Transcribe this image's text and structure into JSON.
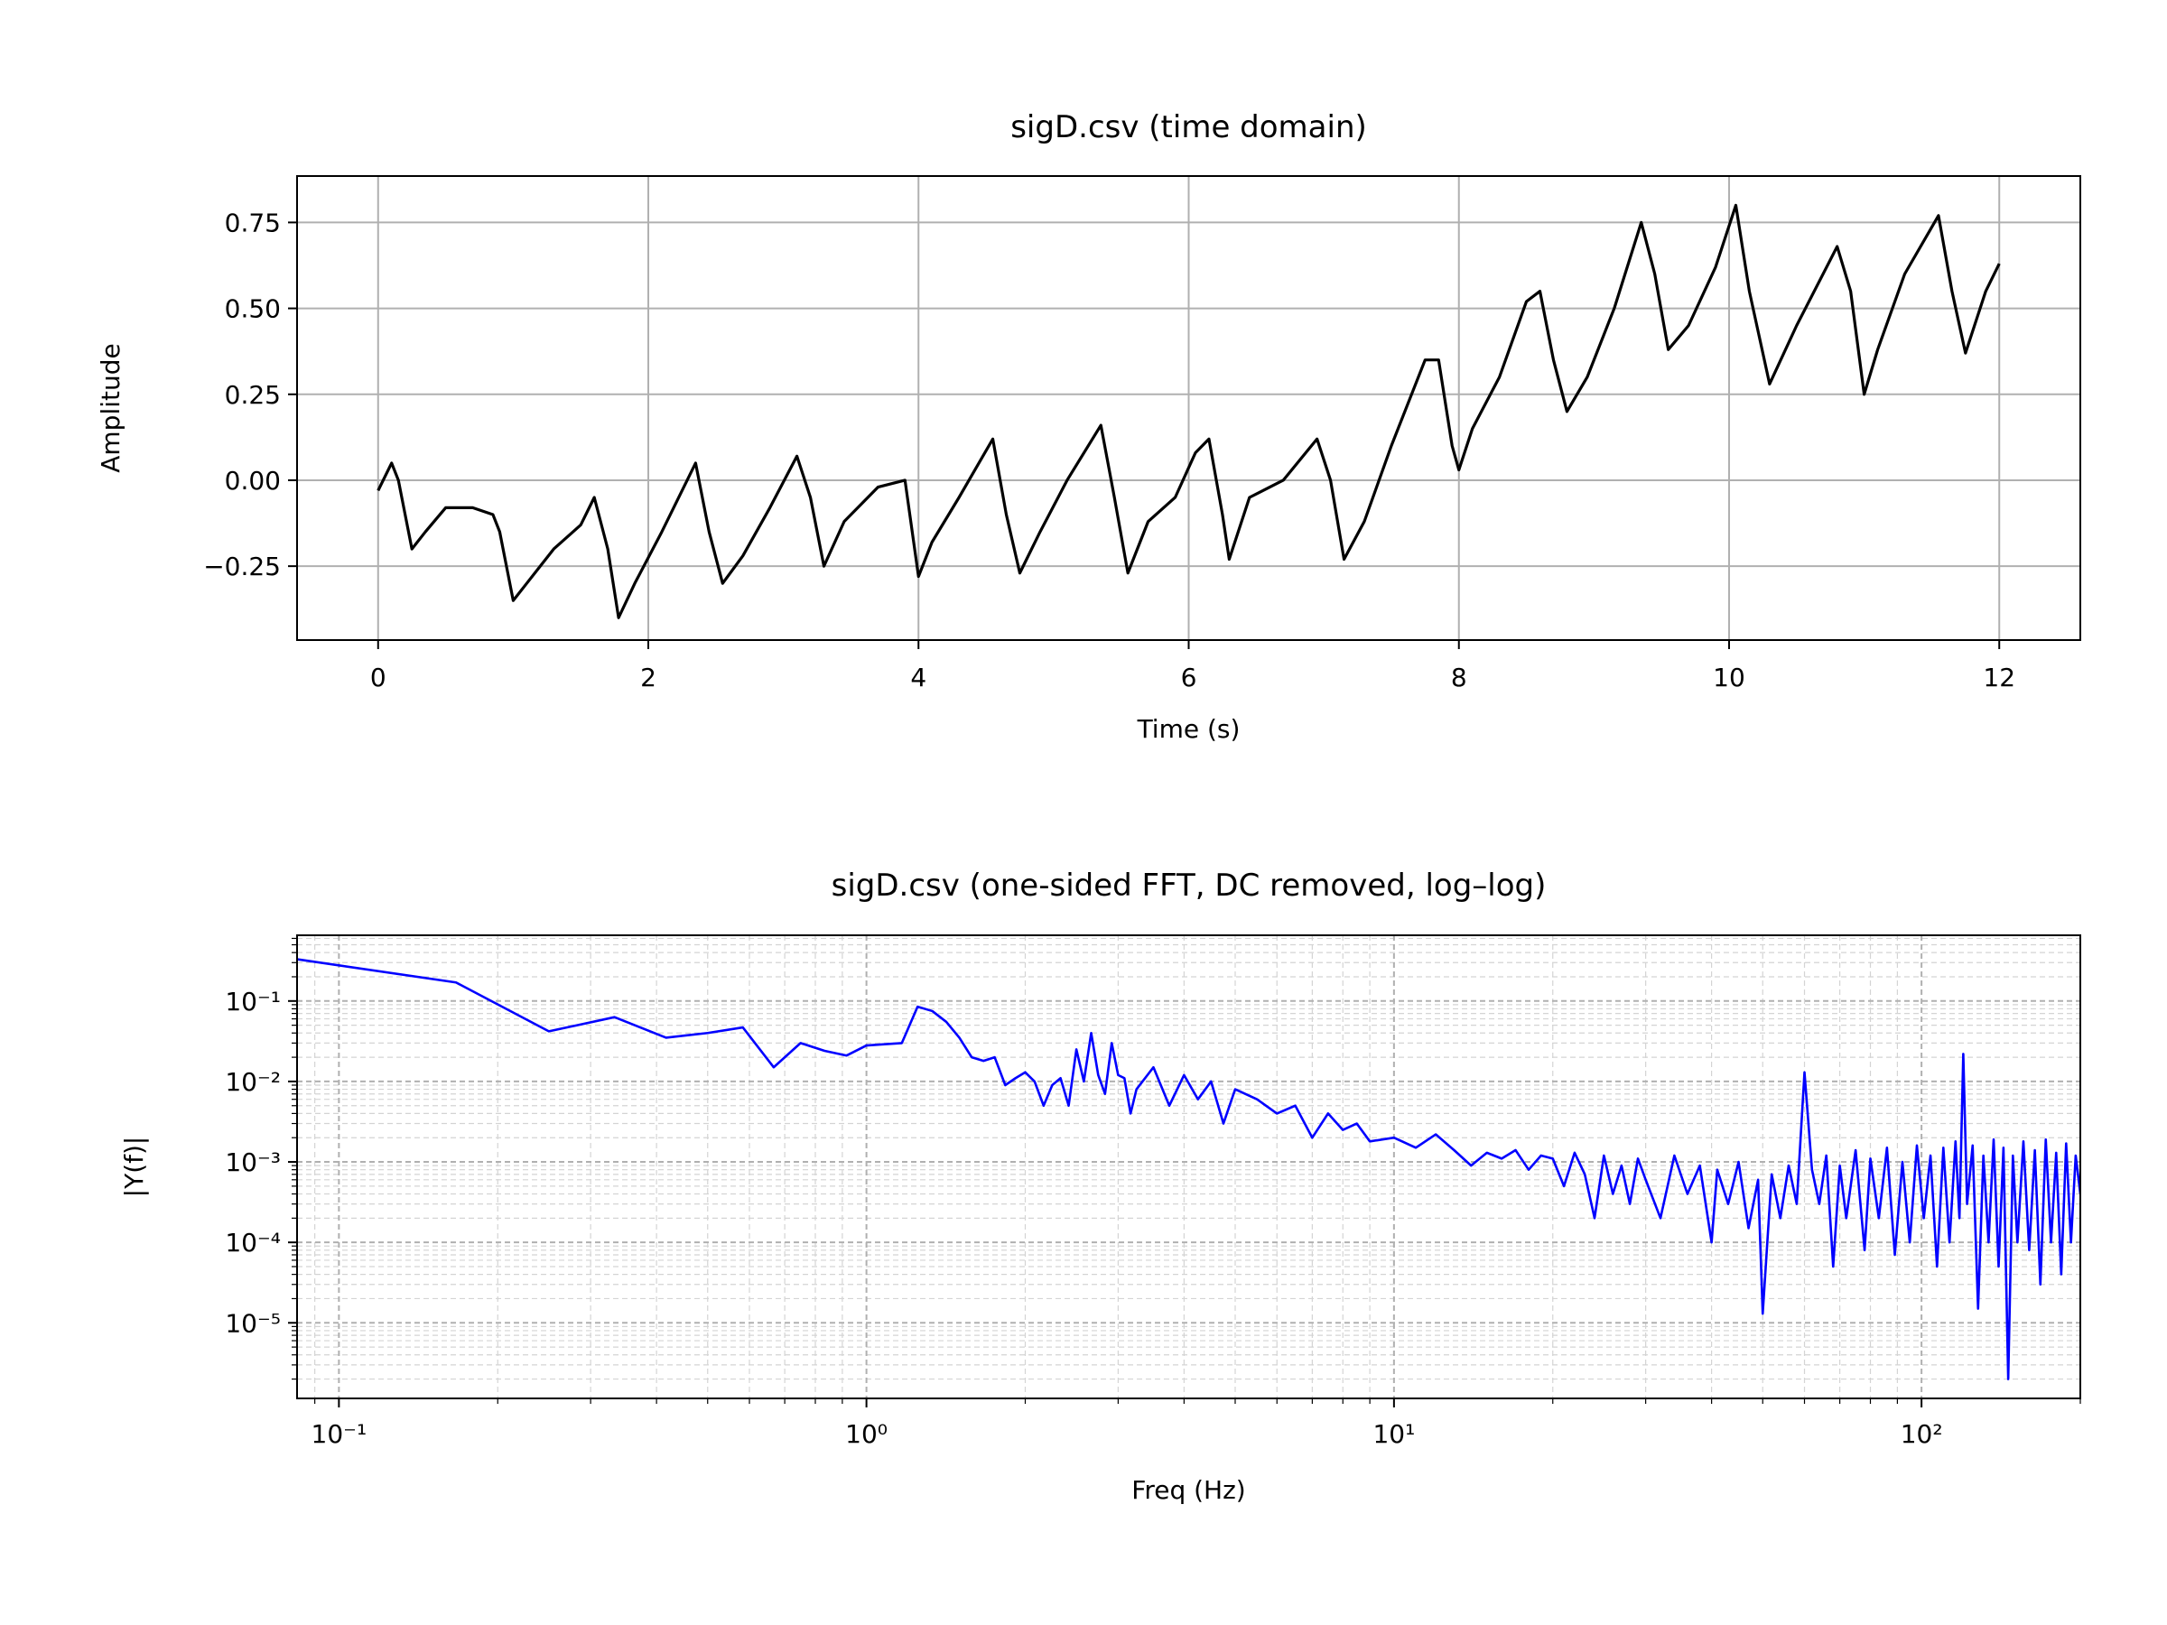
{
  "chart_data": [
    {
      "type": "line",
      "title": "sigD.csv (time domain)",
      "xlabel": "Time (s)",
      "ylabel": "Amplitude",
      "color": "#000000",
      "grid": true,
      "xlim": [
        -0.6,
        12.6
      ],
      "ylim": [
        -0.465,
        0.885
      ],
      "xticks": [
        0,
        2,
        4,
        6,
        8,
        10,
        12
      ],
      "yticks": [
        {
          "value": -0.25,
          "label": "−0.25"
        },
        {
          "value": 0,
          "label": "0.00"
        },
        {
          "value": 0.25,
          "label": "0.25"
        },
        {
          "value": 0.5,
          "label": "0.50"
        },
        {
          "value": 0.75,
          "label": "0.75"
        }
      ],
      "x": [
        0,
        0.1,
        0.15,
        0.25,
        0.35,
        0.5,
        0.7,
        0.85,
        0.9,
        1.0,
        1.1,
        1.3,
        1.5,
        1.6,
        1.7,
        1.78,
        1.9,
        2.1,
        2.35,
        2.45,
        2.55,
        2.7,
        2.9,
        3.1,
        3.2,
        3.3,
        3.45,
        3.7,
        3.9,
        4.0,
        4.1,
        4.3,
        4.55,
        4.65,
        4.75,
        4.9,
        5.1,
        5.35,
        5.45,
        5.55,
        5.7,
        5.9,
        6.05,
        6.15,
        6.25,
        6.3,
        6.45,
        6.7,
        6.95,
        7.05,
        7.15,
        7.3,
        7.5,
        7.75,
        7.85,
        7.95,
        8.0,
        8.1,
        8.3,
        8.5,
        8.6,
        8.7,
        8.8,
        8.95,
        9.15,
        9.35,
        9.45,
        9.55,
        9.7,
        9.9,
        10.05,
        10.15,
        10.3,
        10.5,
        10.8,
        10.9,
        11.0,
        11.1,
        11.3,
        11.55,
        11.65,
        11.75,
        11.9,
        12.0
      ],
      "values": [
        -0.03,
        0.05,
        0.0,
        -0.2,
        -0.15,
        -0.08,
        -0.08,
        -0.1,
        -0.15,
        -0.35,
        -0.3,
        -0.2,
        -0.13,
        -0.05,
        -0.2,
        -0.4,
        -0.3,
        -0.15,
        0.05,
        -0.15,
        -0.3,
        -0.22,
        -0.08,
        0.07,
        -0.05,
        -0.25,
        -0.12,
        -0.02,
        0.0,
        -0.28,
        -0.18,
        -0.05,
        0.12,
        -0.1,
        -0.27,
        -0.15,
        0.0,
        0.16,
        -0.05,
        -0.27,
        -0.12,
        -0.05,
        0.08,
        0.12,
        -0.1,
        -0.23,
        -0.05,
        0.0,
        0.12,
        0.0,
        -0.23,
        -0.12,
        0.1,
        0.35,
        0.35,
        0.1,
        0.03,
        0.15,
        0.3,
        0.52,
        0.55,
        0.35,
        0.2,
        0.3,
        0.5,
        0.75,
        0.6,
        0.38,
        0.45,
        0.62,
        0.8,
        0.55,
        0.28,
        0.45,
        0.68,
        0.55,
        0.25,
        0.38,
        0.6,
        0.77,
        0.55,
        0.37,
        0.55,
        0.63
      ]
    },
    {
      "type": "line",
      "title": "sigD.csv (one-sided FFT, DC removed, log–log)",
      "xlabel": "Freq (Hz)",
      "ylabel": "|Y(f)|",
      "color": "#0000ff",
      "grid": true,
      "minor_grid": true,
      "xscale": "log",
      "yscale": "log",
      "xlim": [
        0.0833,
        200
      ],
      "ylim": [
        1.15e-06,
        0.656
      ],
      "xticks": [
        {
          "value": 0.1,
          "label": "10⁻¹"
        },
        {
          "value": 1,
          "label": "10⁰"
        },
        {
          "value": 10,
          "label": "10¹"
        },
        {
          "value": 100,
          "label": "10²"
        }
      ],
      "yticks": [
        {
          "value": 1e-05,
          "label": "10⁻⁵"
        },
        {
          "value": 0.0001,
          "label": "10⁻⁴"
        },
        {
          "value": 0.001,
          "label": "10⁻³"
        },
        {
          "value": 0.01,
          "label": "10⁻²"
        },
        {
          "value": 0.1,
          "label": "10⁻¹"
        }
      ],
      "xminorticks": [
        0.09,
        0.2,
        0.3,
        0.4,
        0.5,
        0.6,
        0.7,
        0.8,
        0.9,
        2,
        3,
        4,
        5,
        6,
        7,
        8,
        9,
        20,
        30,
        40,
        50,
        60,
        70,
        80,
        90,
        200
      ],
      "yminorticks": [
        2e-06,
        3e-06,
        4e-06,
        5e-06,
        6e-06,
        7e-06,
        8e-06,
        9e-06,
        2e-05,
        3e-05,
        4e-05,
        5e-05,
        6e-05,
        7e-05,
        8e-05,
        9e-05,
        0.0002,
        0.0003,
        0.0004,
        0.0005,
        0.0006,
        0.0007,
        0.0008,
        0.0009,
        0.002,
        0.003,
        0.004,
        0.005,
        0.006,
        0.007,
        0.008,
        0.009,
        0.02,
        0.03,
        0.04,
        0.05,
        0.06,
        0.07,
        0.08,
        0.09,
        0.2,
        0.3,
        0.4,
        0.5,
        0.6
      ],
      "x": [
        0.0833,
        0.1667,
        0.25,
        0.333,
        0.417,
        0.5,
        0.583,
        0.667,
        0.75,
        0.833,
        0.917,
        1.0,
        1.083,
        1.167,
        1.25,
        1.333,
        1.417,
        1.5,
        1.583,
        1.667,
        1.75,
        1.833,
        1.917,
        2.0,
        2.083,
        2.167,
        2.25,
        2.333,
        2.417,
        2.5,
        2.583,
        2.667,
        2.75,
        2.833,
        2.917,
        3.0,
        3.083,
        3.167,
        3.25,
        3.5,
        3.75,
        4.0,
        4.25,
        4.5,
        4.75,
        5.0,
        5.5,
        6.0,
        6.5,
        7,
        7.5,
        8,
        8.5,
        9,
        10,
        11,
        12,
        13,
        14,
        15,
        16,
        17,
        18,
        19,
        20,
        21,
        22,
        23,
        24,
        25,
        26,
        27,
        28,
        29,
        30,
        32,
        34,
        36,
        38,
        40,
        41,
        43,
        45,
        47,
        49,
        50,
        52,
        54,
        56,
        58,
        60,
        62,
        64,
        66,
        68,
        70,
        72,
        75,
        78,
        80,
        83,
        86,
        89,
        92,
        95,
        98,
        101,
        104,
        107,
        110,
        113,
        116,
        118,
        120,
        122,
        125,
        128,
        131,
        134,
        137,
        140,
        143,
        146,
        149,
        152,
        156,
        160,
        164,
        168,
        172,
        176,
        180,
        184,
        188,
        192,
        196,
        200
      ],
      "values": [
        0.33,
        0.17,
        0.042,
        0.063,
        0.035,
        0.04,
        0.047,
        0.015,
        0.03,
        0.024,
        0.021,
        0.028,
        0.029,
        0.03,
        0.085,
        0.075,
        0.055,
        0.035,
        0.02,
        0.018,
        0.02,
        0.009,
        0.011,
        0.013,
        0.01,
        0.005,
        0.009,
        0.011,
        0.005,
        0.025,
        0.01,
        0.04,
        0.012,
        0.007,
        0.03,
        0.012,
        0.011,
        0.004,
        0.008,
        0.015,
        0.005,
        0.012,
        0.006,
        0.01,
        0.003,
        0.008,
        0.006,
        0.004,
        0.005,
        0.002,
        0.004,
        0.0025,
        0.003,
        0.0018,
        0.002,
        0.0015,
        0.0022,
        0.0014,
        0.0009,
        0.0013,
        0.0011,
        0.0014,
        0.0008,
        0.0012,
        0.0011,
        0.0005,
        0.0013,
        0.0007,
        0.0002,
        0.0012,
        0.0004,
        0.0009,
        0.0003,
        0.0011,
        0.0006,
        0.0002,
        0.0012,
        0.0004,
        0.0009,
        0.0001,
        0.0008,
        0.0003,
        0.001,
        0.00015,
        0.0006,
        1.3e-05,
        0.0007,
        0.0002,
        0.0009,
        0.0003,
        0.013,
        0.0008,
        0.0003,
        0.0012,
        5e-05,
        0.0009,
        0.0002,
        0.0014,
        8e-05,
        0.0011,
        0.0002,
        0.0015,
        7e-05,
        0.001,
        0.0001,
        0.0016,
        0.0002,
        0.0012,
        5e-05,
        0.0015,
        0.0001,
        0.0018,
        0.0002,
        0.022,
        0.0003,
        0.0016,
        1.5e-05,
        0.0012,
        0.0001,
        0.0019,
        5e-05,
        0.0015,
        2e-06,
        0.0012,
        0.0001,
        0.0018,
        8e-05,
        0.0014,
        3e-05,
        0.0019,
        0.0001,
        0.0013,
        4e-05,
        0.0017,
        0.0001,
        0.0012,
        0.0004
      ]
    }
  ]
}
